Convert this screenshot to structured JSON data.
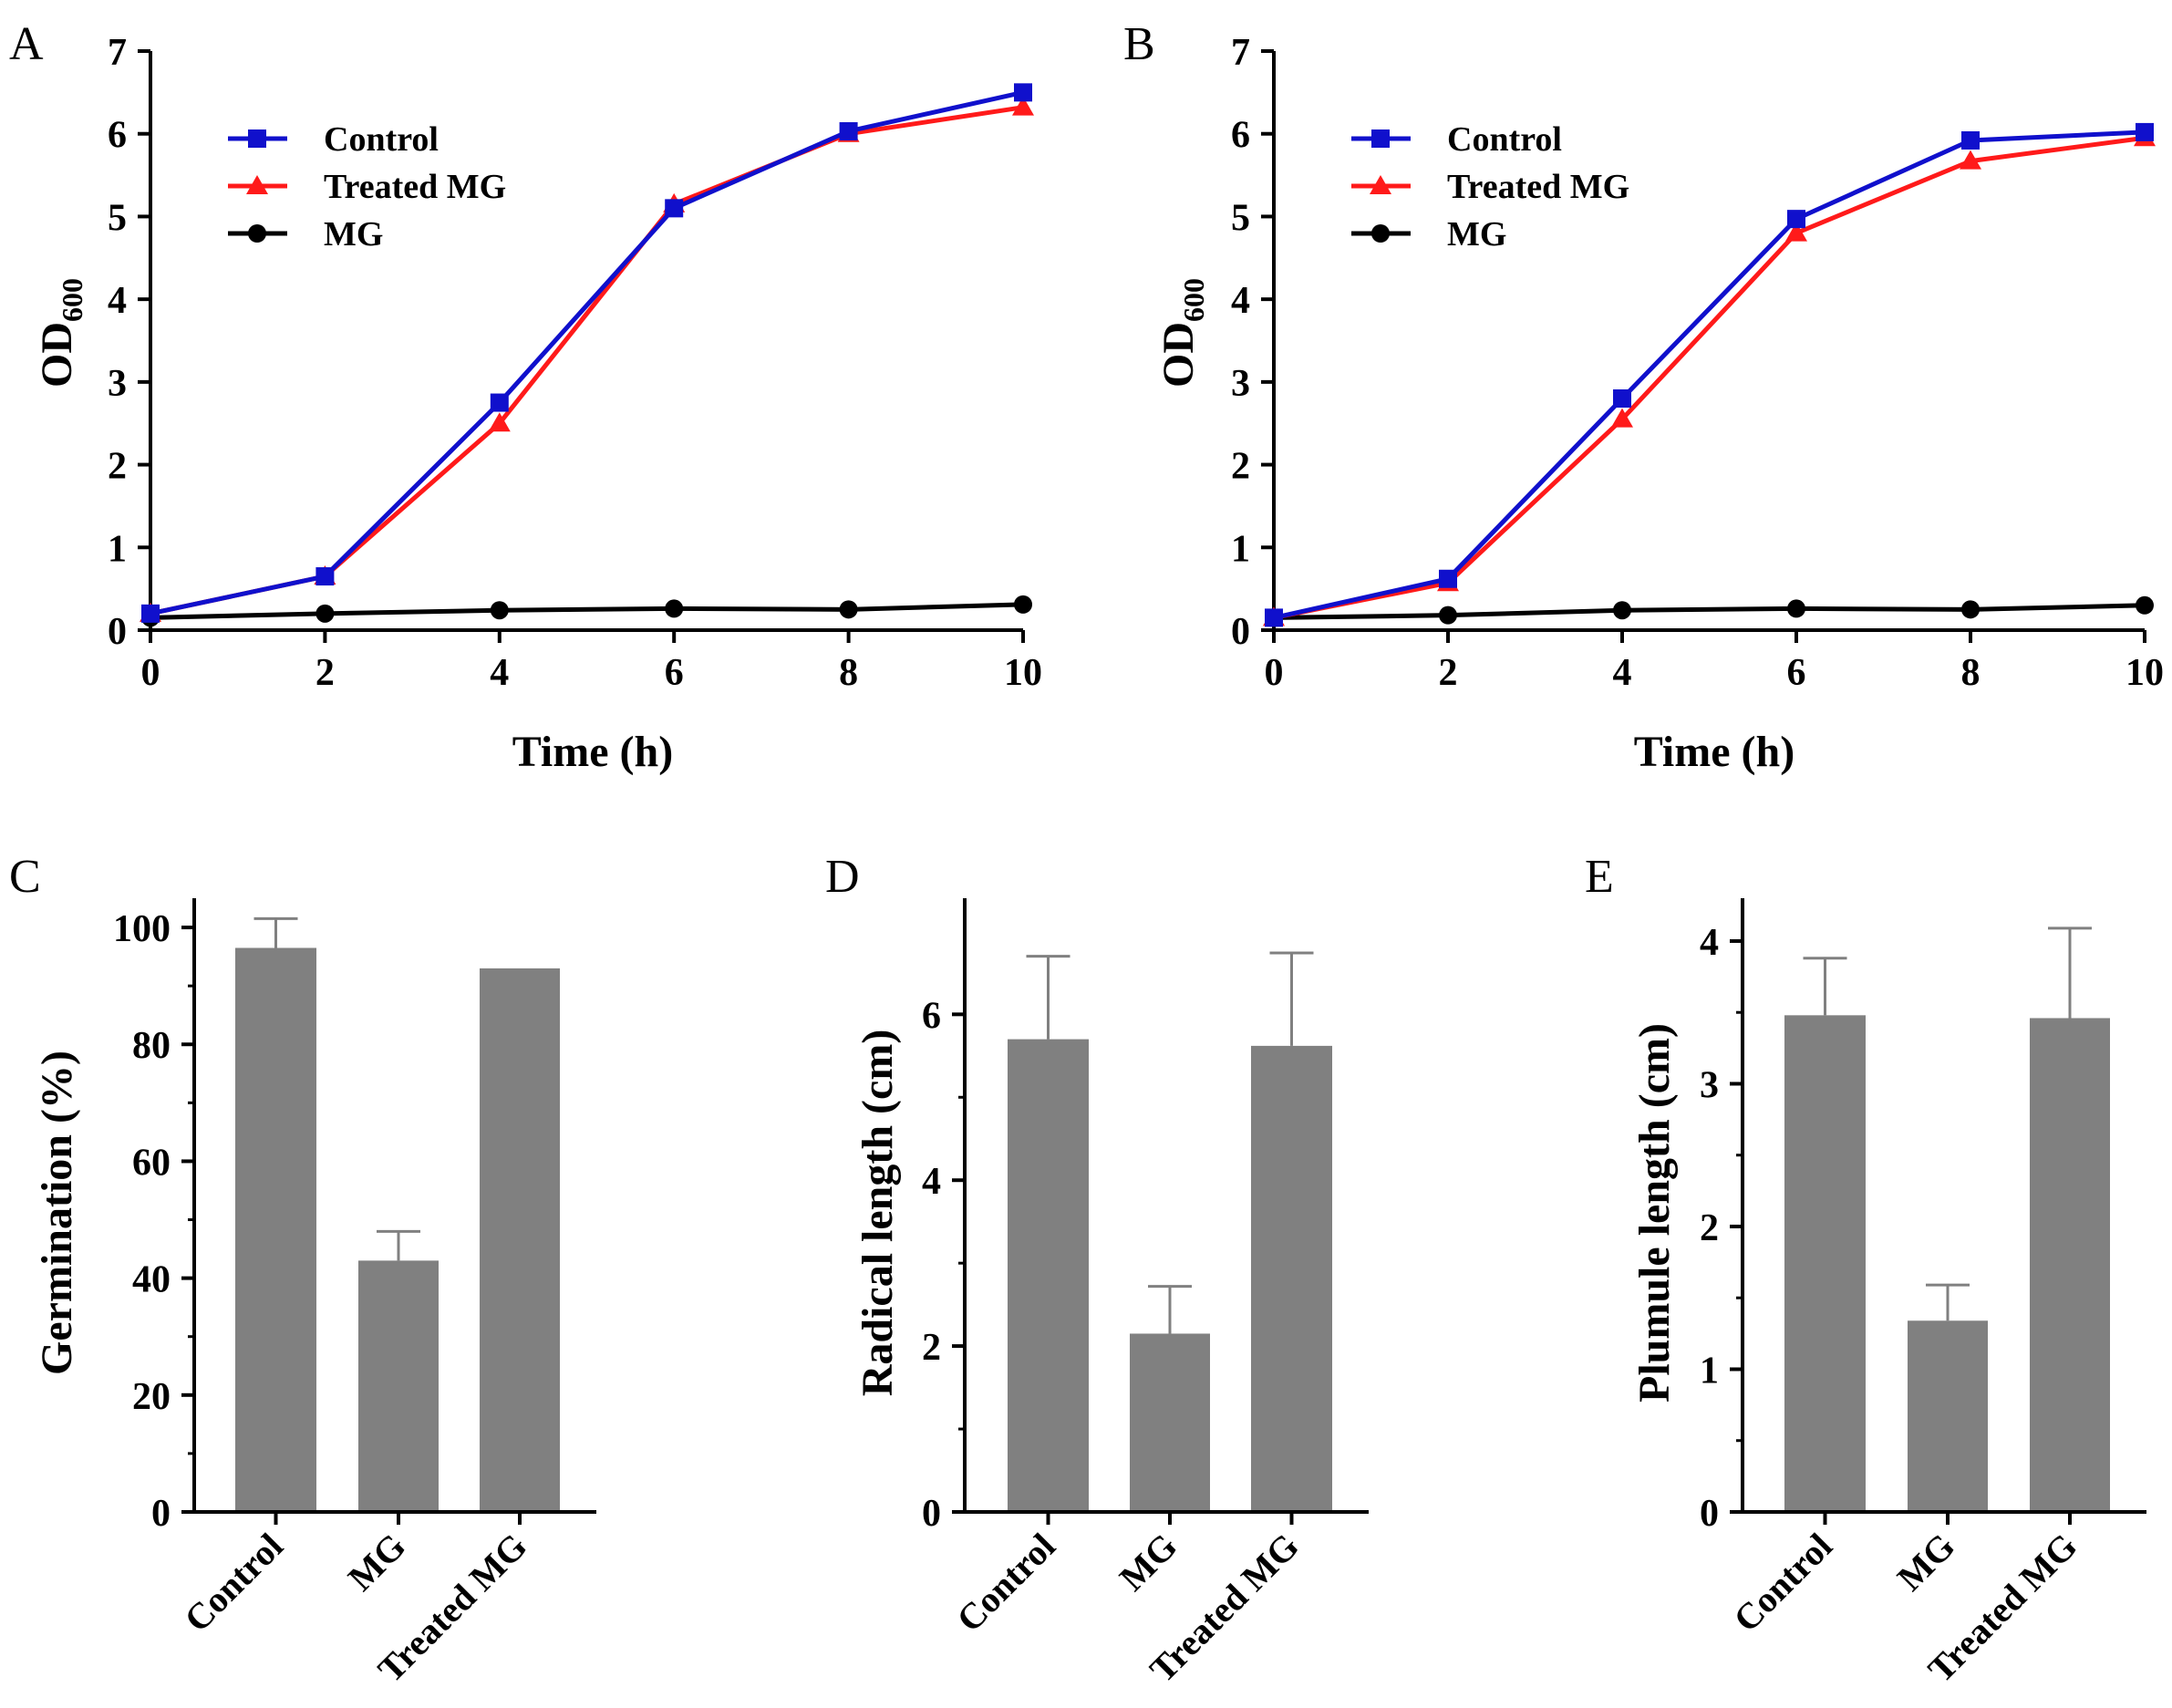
{
  "chart_data": [
    {
      "panel": "A",
      "type": "line",
      "xlabel": "Time (h)",
      "ylabel": "OD",
      "ylabel_sub": "600",
      "x": [
        0,
        2,
        4,
        6,
        8,
        10
      ],
      "xticks": [
        "0",
        "2",
        "4",
        "6",
        "8",
        "10"
      ],
      "yticks": [
        "0",
        "1",
        "2",
        "3",
        "4",
        "5",
        "6",
        "7"
      ],
      "xlim": [
        0,
        10
      ],
      "ylim": [
        0,
        7
      ],
      "legend_position": "top-left",
      "series": [
        {
          "name": "Control",
          "color": "#1010cc",
          "marker": "square",
          "values": [
            0.2,
            0.65,
            2.75,
            5.1,
            6.03,
            6.5
          ]
        },
        {
          "name": "Treated MG",
          "color": "#ff1a1a",
          "marker": "triangle",
          "values": [
            0.2,
            0.65,
            2.5,
            5.15,
            6.0,
            6.32
          ]
        },
        {
          "name": "MG",
          "color": "#000000",
          "marker": "circle",
          "values": [
            0.15,
            0.2,
            0.24,
            0.26,
            0.25,
            0.31
          ]
        }
      ]
    },
    {
      "panel": "B",
      "type": "line",
      "xlabel": "Time (h)",
      "ylabel": "OD",
      "ylabel_sub": "600",
      "x": [
        0,
        2,
        4,
        6,
        8,
        10
      ],
      "xticks": [
        "0",
        "2",
        "4",
        "6",
        "8",
        "10"
      ],
      "yticks": [
        "0",
        "1",
        "2",
        "3",
        "4",
        "5",
        "6",
        "7"
      ],
      "xlim": [
        0,
        10
      ],
      "ylim": [
        0,
        7
      ],
      "legend_position": "top-left",
      "series": [
        {
          "name": "Control",
          "color": "#1010cc",
          "marker": "square",
          "values": [
            0.15,
            0.62,
            2.8,
            4.97,
            5.92,
            6.02
          ]
        },
        {
          "name": "Treated MG",
          "color": "#ff1a1a",
          "marker": "triangle",
          "values": [
            0.15,
            0.57,
            2.55,
            4.8,
            5.67,
            5.95
          ]
        },
        {
          "name": "MG",
          "color": "#000000",
          "marker": "circle",
          "values": [
            0.15,
            0.18,
            0.24,
            0.26,
            0.25,
            0.3
          ]
        }
      ]
    },
    {
      "panel": "C",
      "type": "bar",
      "ylabel": "Germination (%)",
      "categories": [
        "Control",
        "MG",
        "Treated MG"
      ],
      "values": [
        96.5,
        43,
        93
      ],
      "errors": [
        5,
        5,
        0
      ],
      "yticks": [
        "0",
        "20",
        "40",
        "60",
        "80",
        "100"
      ],
      "ylim": [
        0,
        105
      ],
      "bar_color": "#808080"
    },
    {
      "panel": "D",
      "type": "bar",
      "ylabel": "Radical length (cm)",
      "categories": [
        "Control",
        "MG",
        "Treated MG"
      ],
      "values": [
        5.7,
        2.15,
        5.62
      ],
      "errors": [
        1.0,
        0.57,
        1.12
      ],
      "yticks": [
        "0",
        "2",
        "4",
        "6"
      ],
      "ylim": [
        0,
        7.4
      ],
      "bar_color": "#808080"
    },
    {
      "panel": "E",
      "type": "bar",
      "ylabel": "Plumule length (cm)",
      "categories": [
        "Control",
        "MG",
        "Treated MG"
      ],
      "values": [
        3.48,
        1.34,
        3.46
      ],
      "errors": [
        0.4,
        0.25,
        0.63
      ],
      "yticks": [
        "0",
        "1",
        "2",
        "3",
        "4"
      ],
      "ylim": [
        0,
        4.3
      ],
      "bar_color": "#808080"
    }
  ]
}
